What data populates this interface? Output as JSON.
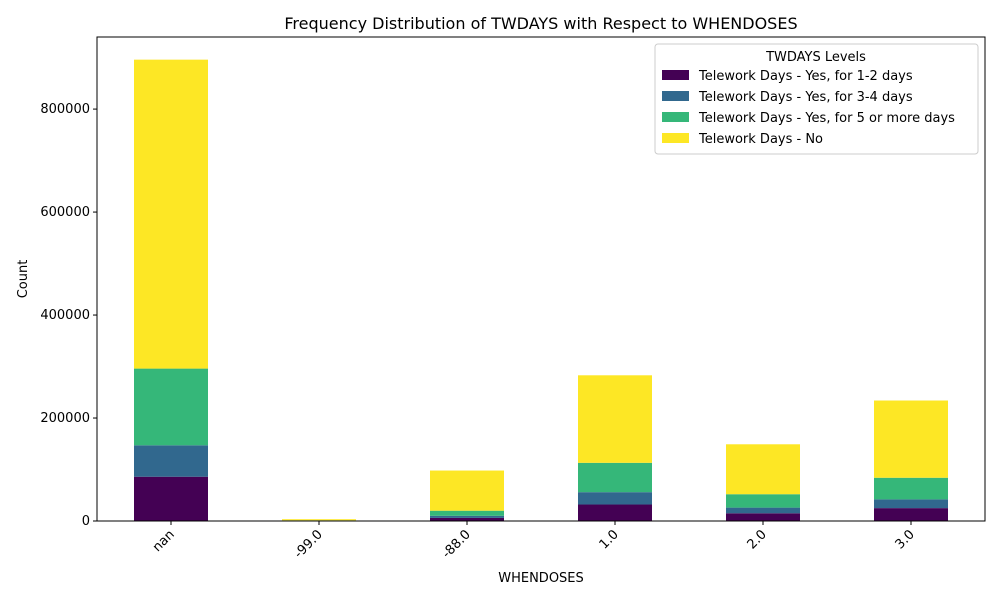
{
  "chart_data": {
    "type": "bar",
    "stacked": true,
    "title": "Frequency Distribution of TWDAYS with Respect to WHENDOSES",
    "xlabel": "WHENDOSES",
    "ylabel": "Count",
    "categories": [
      "nan",
      "-99.0",
      "-88.0",
      "1.0",
      "2.0",
      "3.0"
    ],
    "ylim": [
      0,
      940000
    ],
    "yticks": [
      0,
      200000,
      400000,
      600000,
      800000
    ],
    "grid": false,
    "legend": {
      "title": "TWDAYS Levels",
      "placement": "top-right"
    },
    "series": [
      {
        "name": "Telework Days - Yes, for 1-2 days",
        "color": "#440154",
        "values": [
          86000,
          600,
          6000,
          32000,
          15000,
          25000
        ]
      },
      {
        "name": "Telework Days - Yes, for 3-4 days",
        "color": "#31688e",
        "values": [
          61000,
          300,
          4000,
          24000,
          11000,
          17000
        ]
      },
      {
        "name": "Telework Days - Yes, for 5 or more days",
        "color": "#35b779",
        "values": [
          149000,
          400,
          10000,
          57000,
          26000,
          42000
        ]
      },
      {
        "name": "Telework Days - No",
        "color": "#fde725",
        "values": [
          600000,
          2200,
          78000,
          170000,
          97000,
          150000
        ]
      }
    ]
  }
}
